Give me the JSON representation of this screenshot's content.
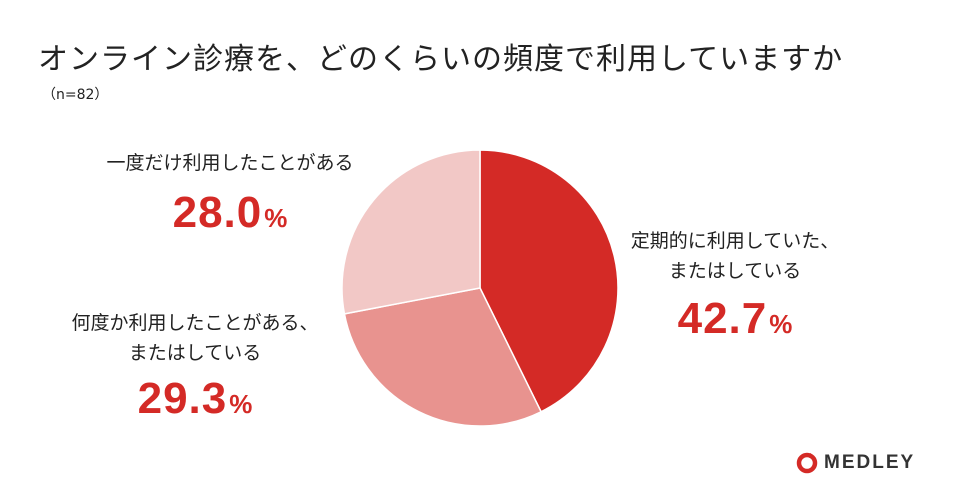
{
  "title": "オンライン診療を、どのくらいの頻度で利用していますか",
  "subtitle": "（n=82）",
  "percent_sign": "%",
  "chart_data": {
    "type": "pie",
    "categories": [
      "定期的に利用していた、またはしている",
      "何度か利用したことがある、またはしている",
      "一度だけ利用したことがある"
    ],
    "values": [
      42.7,
      29.3,
      28.0
    ],
    "labels": [
      {
        "line1": "定期的に利用していた、",
        "line2": "またはしている",
        "value_text": "42.7"
      },
      {
        "line1": "何度か利用したことがある、",
        "line2": "またはしている",
        "value_text": "29.3"
      },
      {
        "line1": "一度だけ利用したことがある",
        "line2": "",
        "value_text": "28.0"
      }
    ],
    "colors": [
      "#d42a26",
      "#e8938f",
      "#f2c8c6"
    ],
    "start": "12 o'clock",
    "direction": "clockwise"
  },
  "brand": {
    "name": "MEDLEY",
    "color": "#d42a26",
    "icon": "medley-logo-icon"
  }
}
